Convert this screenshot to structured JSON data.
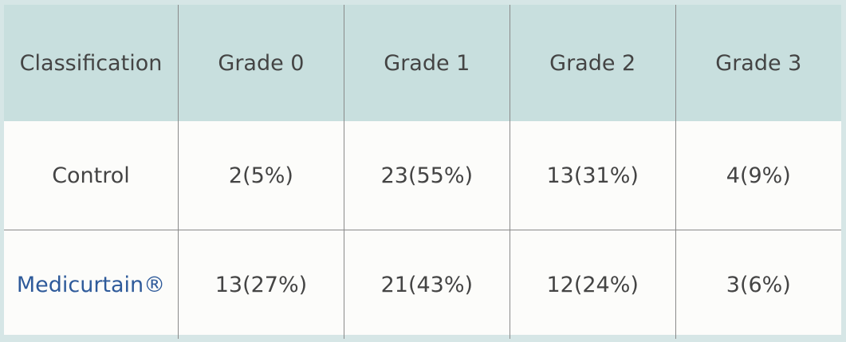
{
  "table": {
    "header": [
      "Classification",
      "Grade 0",
      "Grade 1",
      "Grade 2",
      "Grade 3"
    ],
    "rows": [
      [
        "Control",
        "2(5%)",
        "23(55%)",
        "13(31%)",
        "4(9%)"
      ],
      [
        "Medicurtain®",
        "13(27%)",
        "21(43%)",
        "12(24%)",
        "3(6%)"
      ]
    ]
  }
}
